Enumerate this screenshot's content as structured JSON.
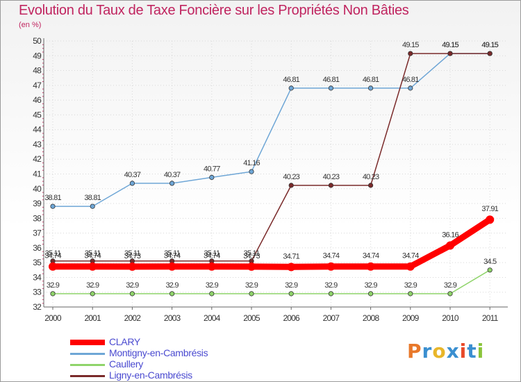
{
  "chart_data": {
    "type": "line",
    "title": "Evolution du Taux de Taxe Foncière sur les Propriétés Non Bâties",
    "ylabel": "(en %)",
    "xlabel": "",
    "ylim": [
      32,
      50
    ],
    "yticks": [
      "32",
      "33",
      "34",
      "35",
      "36",
      "37",
      "38",
      "39",
      "40",
      "41",
      "42",
      "43",
      "44",
      "45",
      "46",
      "47",
      "48",
      "49",
      "50"
    ],
    "categories": [
      "2000",
      "2001",
      "2002",
      "2003",
      "2004",
      "2005",
      "2006",
      "2007",
      "2008",
      "2009",
      "2010",
      "2011"
    ],
    "series": [
      {
        "name": "CLARY",
        "color": "#ff0000",
        "values": [
          34.74,
          34.74,
          34.73,
          34.74,
          34.74,
          34.73,
          34.71,
          34.74,
          34.74,
          34.74,
          36.16,
          37.91
        ],
        "labels": [
          "34.74",
          "34.74",
          "34.73",
          "34.74",
          "34.74",
          "34.73",
          "34.71",
          "34.74",
          "34.74",
          "34.74",
          "36.16",
          "37.91"
        ]
      },
      {
        "name": "Montigny-en-Cambrésis",
        "color": "#6ea6d6",
        "values": [
          38.81,
          38.81,
          40.37,
          40.37,
          40.77,
          41.16,
          46.81,
          46.81,
          46.81,
          46.81,
          49.15,
          49.15
        ],
        "labels": [
          "38.81",
          "38.81",
          "40.37",
          "40.37",
          "40.77",
          "41.16",
          "46.81",
          "46.81",
          "46.81",
          "46.81",
          "49.15",
          "49.15"
        ]
      },
      {
        "name": "Caullery",
        "color": "#8fd46a",
        "values": [
          32.9,
          32.9,
          32.9,
          32.9,
          32.9,
          32.9,
          32.9,
          32.9,
          32.9,
          32.9,
          32.9,
          34.5
        ],
        "labels": [
          "32.9",
          "32.9",
          "32.9",
          "32.9",
          "32.9",
          "32.9",
          "32.9",
          "32.9",
          "32.9",
          "32.9",
          "32.9",
          "34.5"
        ]
      },
      {
        "name": "Ligny-en-Cambrésis",
        "color": "#7a2a2a",
        "values": [
          35.11,
          35.11,
          35.11,
          35.11,
          35.11,
          35.11,
          40.23,
          40.23,
          40.23,
          49.15,
          49.15,
          49.15
        ],
        "labels": [
          "35.11",
          "35.11",
          "35.11",
          "35.11",
          "35.11",
          "35.11",
          "40.23",
          "40.23",
          "40.23",
          "49.15",
          "49.15",
          "49.15"
        ]
      }
    ]
  },
  "logo": {
    "letters": [
      "P",
      "r",
      "o",
      "x",
      "i",
      "t",
      "i"
    ],
    "colors": [
      "#e8782a",
      "#3a8fd0",
      "#e8b62a",
      "#3a8fd0",
      "#e84a2a",
      "#3a8fd0",
      "#8ac43a"
    ]
  }
}
